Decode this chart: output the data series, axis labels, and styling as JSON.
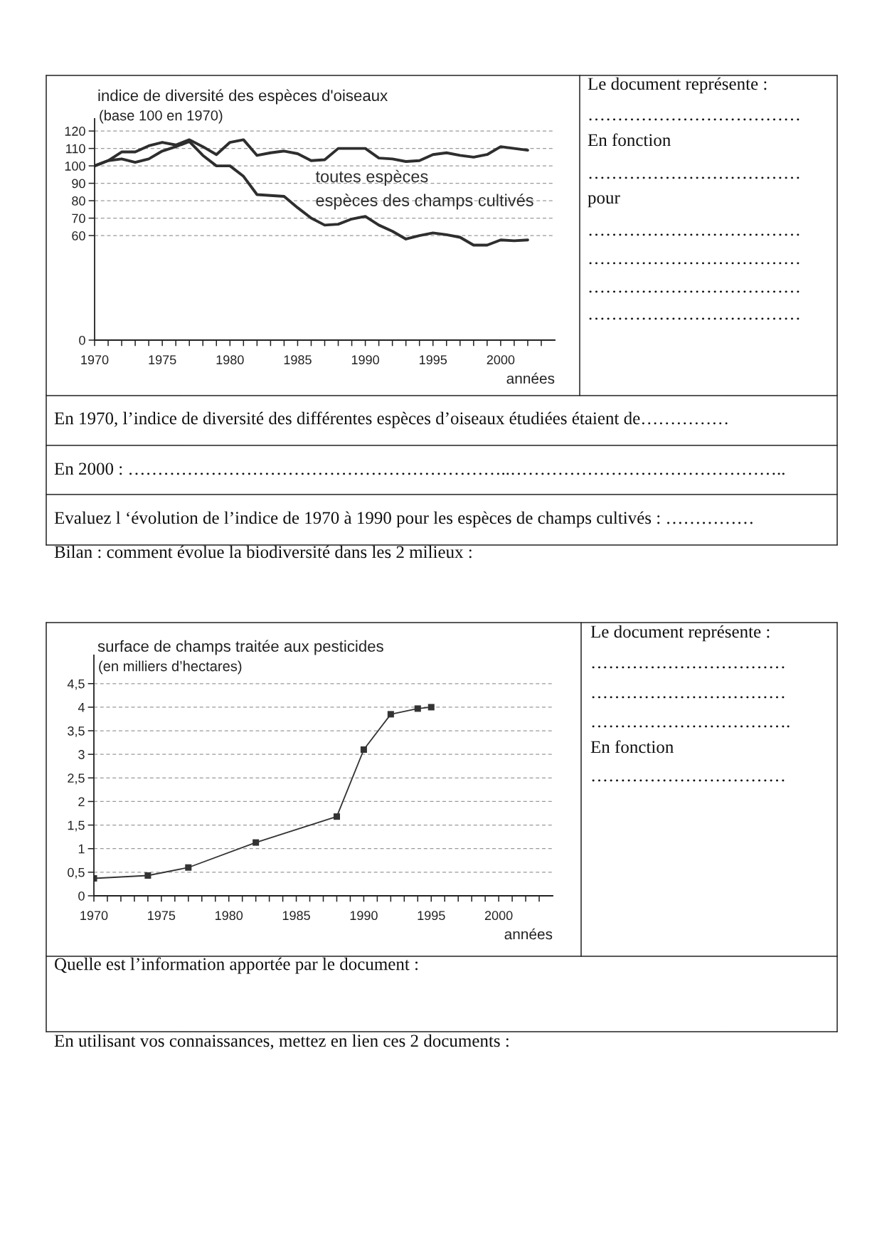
{
  "chart_data": [
    {
      "type": "line",
      "title": "indice de diversité des espèces d'oiseaux",
      "subtitle": "(base 100 en 1970)",
      "xlabel": "années",
      "x": [
        1970,
        1971,
        1972,
        1973,
        1974,
        1975,
        1976,
        1977,
        1978,
        1979,
        1980,
        1981,
        1982,
        1983,
        1984,
        1985,
        1986,
        1987,
        1988,
        1989,
        1990,
        1991,
        1992,
        1993,
        1994,
        1995,
        1996,
        1997,
        1998,
        1999,
        2000,
        2001,
        2002
      ],
      "series": [
        {
          "name": "toutes espèces",
          "color": "#2e2e2e",
          "values": [
            100,
            103,
            108,
            108,
            111.5,
            113.5,
            112,
            115,
            111,
            106.5,
            113.5,
            115,
            106,
            107.5,
            108.5,
            107,
            103,
            103.5,
            110,
            110,
            110,
            104.5,
            104,
            102.5,
            103,
            106.5,
            107.5,
            106,
            105,
            106.5,
            111,
            110,
            109
          ]
        },
        {
          "name": "espèces des champs cultivés",
          "color": "#2e2e2e",
          "values": [
            100,
            103,
            104,
            102,
            104,
            108.5,
            111,
            114,
            106,
            100,
            100,
            94,
            83.5,
            83,
            82.5,
            76,
            70,
            66,
            66.5,
            69.5,
            71,
            66,
            62.5,
            58,
            60,
            61.5,
            60.5,
            59,
            54.5,
            54.5,
            57.5,
            57,
            57.5
          ]
        }
      ],
      "xlim": [
        1970,
        2004
      ],
      "xticks": [
        1970,
        {
          "value": 1971,
          "label": null
        },
        {
          "value": 1972,
          "label": null
        },
        {
          "value": 1973,
          "label": null
        },
        {
          "value": 1974,
          "label": null
        },
        1975,
        {
          "value": 1976,
          "label": null
        },
        {
          "value": 1977,
          "label": null
        },
        {
          "value": 1978,
          "label": null
        },
        {
          "value": 1979,
          "label": null
        },
        1980,
        {
          "value": 1981,
          "label": null
        },
        {
          "value": 1982,
          "label": null
        },
        {
          "value": 1983,
          "label": null
        },
        {
          "value": 1984,
          "label": null
        },
        1985,
        {
          "value": 1986,
          "label": null
        },
        {
          "value": 1987,
          "label": null
        },
        {
          "value": 1988,
          "label": null
        },
        {
          "value": 1989,
          "label": null
        },
        1990,
        {
          "value": 1991,
          "label": null
        },
        {
          "value": 1992,
          "label": null
        },
        {
          "value": 1993,
          "label": null
        },
        {
          "value": 1994,
          "label": null
        },
        1995,
        {
          "value": 1996,
          "label": null
        },
        {
          "value": 1997,
          "label": null
        },
        {
          "value": 1998,
          "label": null
        },
        {
          "value": 1999,
          "label": null
        },
        2000,
        {
          "value": 2001,
          "label": null
        },
        {
          "value": 2002,
          "label": null
        },
        {
          "value": 2003,
          "label": null
        }
      ],
      "ylim": [
        0,
        127
      ],
      "yticks": [
        0,
        60,
        70,
        80,
        90,
        100,
        110,
        120
      ],
      "grid": "y",
      "legend": false,
      "line_style": "solid",
      "annotations": [
        "Le document représente :",
        "………………………………",
        "En fonction",
        "………………………………",
        "pour",
        "………………………………",
        "………………………………",
        "………………………………",
        "………………………………",
        "En 1970, l’indice de diversité des différentes espèces d’oiseaux étudiées étaient de……………",
        "En 2000 : ………………………………………………………..………………………………………..",
        "Evaluez l ‘évolution de l’indice de 1970 à 1990 pour les espèces de champs cultivés : ……………",
        "Bilan : comment évolue la biodiversité dans les 2 milieux :"
      ]
    },
    {
      "type": "line",
      "title": "surface de champs traitée aux pesticides",
      "subtitle": "(en milliers d’hectares)",
      "xlabel": "années",
      "x": [
        1970,
        1974,
        1977,
        1982,
        1988,
        1990,
        1992,
        1994,
        1995
      ],
      "values": [
        0.37,
        0.43,
        0.6,
        1.13,
        1.68,
        3.1,
        3.85,
        3.97,
        4.0
      ],
      "color": "#333333",
      "xlim": [
        1970,
        2004
      ],
      "xticks": [
        1970,
        {
          "value": 1971,
          "label": null
        },
        {
          "value": 1972,
          "label": null
        },
        {
          "value": 1973,
          "label": null
        },
        {
          "value": 1974,
          "label": null
        },
        1975,
        {
          "value": 1976,
          "label": null
        },
        {
          "value": 1977,
          "label": null
        },
        {
          "value": 1978,
          "label": null
        },
        {
          "value": 1979,
          "label": null
        },
        1980,
        {
          "value": 1981,
          "label": null
        },
        {
          "value": 1982,
          "label": null
        },
        {
          "value": 1983,
          "label": null
        },
        {
          "value": 1984,
          "label": null
        },
        1985,
        {
          "value": 1986,
          "label": null
        },
        {
          "value": 1987,
          "label": null
        },
        {
          "value": 1988,
          "label": null
        },
        {
          "value": 1989,
          "label": null
        },
        1990,
        {
          "value": 1991,
          "label": null
        },
        {
          "value": 1992,
          "label": null
        },
        {
          "value": 1993,
          "label": null
        },
        {
          "value": 1994,
          "label": null
        },
        1995,
        {
          "value": 1996,
          "label": null
        },
        {
          "value": 1997,
          "label": null
        },
        {
          "value": 1998,
          "label": null
        },
        {
          "value": 1999,
          "label": null
        },
        2000,
        {
          "value": 2001,
          "label": null
        },
        {
          "value": 2002,
          "label": null
        },
        {
          "value": 2003,
          "label": null
        }
      ],
      "ylim": [
        0,
        5.1
      ],
      "yticks": [
        0,
        {
          "value": 0.5,
          "label": "0,5"
        },
        1,
        {
          "value": 1.5,
          "label": "1,5"
        },
        2,
        {
          "value": 2.5,
          "label": "2,5"
        },
        3,
        {
          "value": 3.5,
          "label": "3,5"
        },
        4,
        {
          "value": 4.5,
          "label": "4,5"
        }
      ],
      "grid": "y",
      "marker": "square",
      "line_style": "solid",
      "annotations": [
        "Le document représente :",
        "……………………………",
        "……………………………",
        "…………………………….",
        "En fonction",
        "……………………………",
        "Quelle est l’information apportée par le document :",
        "En utilisant vos connaissances, mettez en lien ces 2 documents :"
      ]
    }
  ]
}
